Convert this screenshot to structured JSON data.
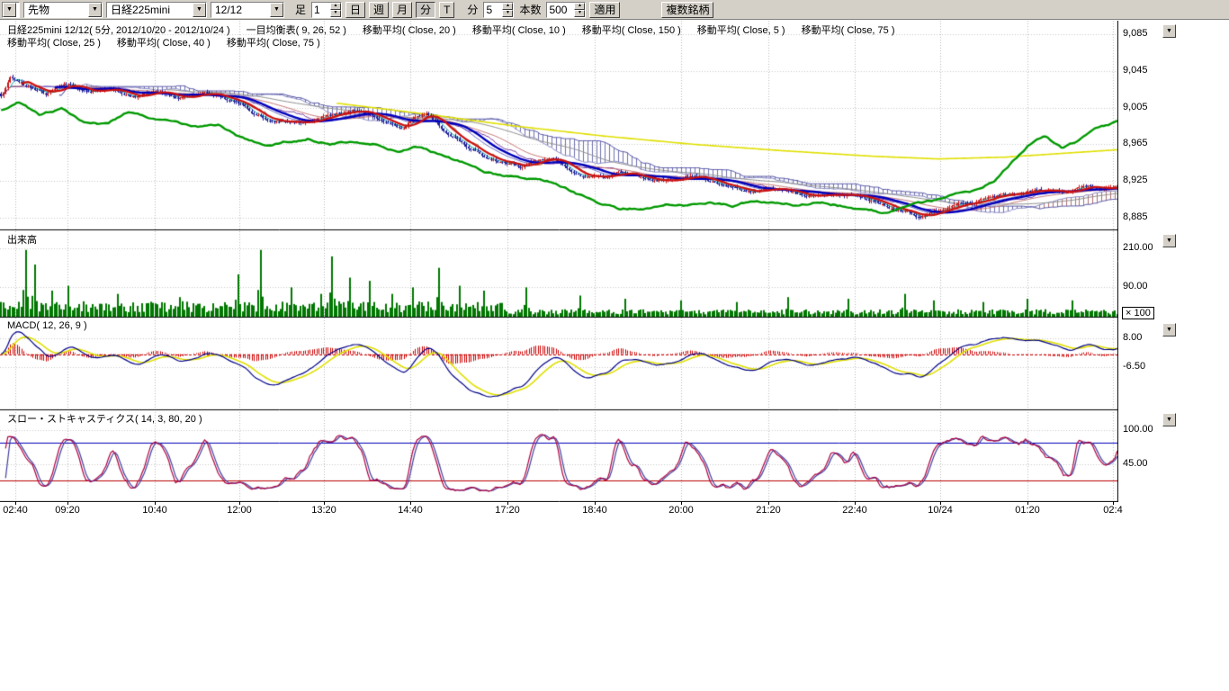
{
  "toolbar": {
    "selects": {
      "category": "先物",
      "symbol": "日経225mini",
      "contract": "12/12"
    },
    "bar_label": "足",
    "bar_multiplier_value": "1",
    "period_buttons": [
      "日",
      "週",
      "月",
      "分"
    ],
    "tick_button_label": "T",
    "minute_unit_label": "分",
    "minute_value": "5",
    "count_label": "本数",
    "count_value": "500",
    "apply_label": "適用",
    "multi_symbol_label": "複数銘柄"
  },
  "chart_header": {
    "line1": [
      "日経225mini 12/12( 5分, 2012/10/20 - 2012/10/24 )",
      "一目均衡表( 9, 26, 52 )",
      "移動平均( Close, 20 )",
      "移動平均( Close, 10 )",
      "移動平均( Close, 150 )",
      "移動平均( Close, 5 )",
      "移動平均( Close, 75 )"
    ],
    "line2": [
      "移動平均( Close, 25 )",
      "移動平均( Close, 40 )",
      "移動平均( Close, 75 )"
    ]
  },
  "panel_labels": {
    "volume": "出来高",
    "macd": "MACD( 12, 26, 9 )",
    "stoch": "スロー・ストキャスティクス( 14, 3, 80, 20 )",
    "volume_multiplier": "× 100"
  },
  "chart_data": {
    "type": "candlestick",
    "symbol": "日経225mini 12/12",
    "interval": "5分",
    "date_range": "2012/10/20 - 2012/10/24",
    "bars": 500,
    "x_axis": {
      "labels": [
        "02:40",
        "09:20",
        "10:40",
        "12:00",
        "13:20",
        "14:40",
        "17:20",
        "18:40",
        "20:00",
        "21:20",
        "22:40",
        "10/24",
        "01:20",
        "02:4"
      ],
      "positions": [
        0.014,
        0.06,
        0.138,
        0.214,
        0.29,
        0.367,
        0.454,
        0.532,
        0.609,
        0.687,
        0.764,
        0.841,
        0.919,
        0.995
      ]
    },
    "main": {
      "ylim": [
        8872,
        9100
      ],
      "ytick_labels": [
        "9,085",
        "9,045",
        "9,005",
        "8,965",
        "8,925",
        "8,885"
      ],
      "ytick_values": [
        9085,
        9045,
        9005,
        8965,
        8925,
        8885
      ],
      "ichimoku_params": [
        9,
        26,
        52
      ],
      "close_anchors": [
        [
          0,
          9018
        ],
        [
          0.008,
          9038
        ],
        [
          0.02,
          9028
        ],
        [
          0.04,
          9020
        ],
        [
          0.06,
          9028
        ],
        [
          0.08,
          9022
        ],
        [
          0.1,
          9025
        ],
        [
          0.12,
          9018
        ],
        [
          0.14,
          9022
        ],
        [
          0.16,
          9015
        ],
        [
          0.18,
          9020
        ],
        [
          0.2,
          9012
        ],
        [
          0.215,
          9008
        ],
        [
          0.225,
          8996
        ],
        [
          0.24,
          8990
        ],
        [
          0.255,
          8992
        ],
        [
          0.27,
          8988
        ],
        [
          0.285,
          8992
        ],
        [
          0.3,
          8998
        ],
        [
          0.315,
          9002
        ],
        [
          0.33,
          8996
        ],
        [
          0.345,
          8986
        ],
        [
          0.36,
          8978
        ],
        [
          0.37,
          8990
        ],
        [
          0.38,
          8996
        ],
        [
          0.39,
          8988
        ],
        [
          0.4,
          8975
        ],
        [
          0.41,
          8968
        ],
        [
          0.42,
          8960
        ],
        [
          0.435,
          8950
        ],
        [
          0.45,
          8944
        ],
        [
          0.465,
          8940
        ],
        [
          0.48,
          8950
        ],
        [
          0.495,
          8948
        ],
        [
          0.51,
          8938
        ],
        [
          0.525,
          8932
        ],
        [
          0.54,
          8930
        ],
        [
          0.555,
          8936
        ],
        [
          0.57,
          8932
        ],
        [
          0.585,
          8928
        ],
        [
          0.6,
          8926
        ],
        [
          0.615,
          8932
        ],
        [
          0.63,
          8928
        ],
        [
          0.645,
          8922
        ],
        [
          0.66,
          8918
        ],
        [
          0.675,
          8914
        ],
        [
          0.69,
          8920
        ],
        [
          0.705,
          8918
        ],
        [
          0.72,
          8914
        ],
        [
          0.735,
          8910
        ],
        [
          0.75,
          8913
        ],
        [
          0.765,
          8910
        ],
        [
          0.78,
          8904
        ],
        [
          0.795,
          8896
        ],
        [
          0.81,
          8890
        ],
        [
          0.822,
          8884
        ],
        [
          0.835,
          8892
        ],
        [
          0.85,
          8898
        ],
        [
          0.865,
          8902
        ],
        [
          0.88,
          8906
        ],
        [
          0.895,
          8910
        ],
        [
          0.91,
          8912
        ],
        [
          0.925,
          8916
        ],
        [
          0.94,
          8914
        ],
        [
          0.955,
          8912
        ],
        [
          0.97,
          8918
        ],
        [
          0.985,
          8916
        ],
        [
          1,
          8920
        ]
      ],
      "green_anchors": [
        [
          0,
          9002
        ],
        [
          0.015,
          9012
        ],
        [
          0.035,
          8996
        ],
        [
          0.055,
          9004
        ],
        [
          0.075,
          8990
        ],
        [
          0.095,
          8986
        ],
        [
          0.115,
          9000
        ],
        [
          0.135,
          8994
        ],
        [
          0.155,
          8988
        ],
        [
          0.175,
          8984
        ],
        [
          0.195,
          8986
        ],
        [
          0.215,
          8972
        ],
        [
          0.235,
          8964
        ],
        [
          0.255,
          8968
        ],
        [
          0.275,
          8972
        ],
        [
          0.295,
          8966
        ],
        [
          0.315,
          8970
        ],
        [
          0.335,
          8966
        ],
        [
          0.355,
          8958
        ],
        [
          0.375,
          8962
        ],
        [
          0.395,
          8952
        ],
        [
          0.415,
          8944
        ],
        [
          0.435,
          8934
        ],
        [
          0.455,
          8930
        ],
        [
          0.475,
          8928
        ],
        [
          0.495,
          8924
        ],
        [
          0.515,
          8912
        ],
        [
          0.535,
          8900
        ],
        [
          0.555,
          8894
        ],
        [
          0.575,
          8896
        ],
        [
          0.595,
          8900
        ],
        [
          0.615,
          8898
        ],
        [
          0.635,
          8902
        ],
        [
          0.655,
          8898
        ],
        [
          0.675,
          8904
        ],
        [
          0.695,
          8900
        ],
        [
          0.715,
          8898
        ],
        [
          0.735,
          8902
        ],
        [
          0.755,
          8898
        ],
        [
          0.775,
          8892
        ],
        [
          0.795,
          8890
        ],
        [
          0.815,
          8896
        ],
        [
          0.835,
          8902
        ],
        [
          0.855,
          8908
        ],
        [
          0.875,
          8914
        ],
        [
          0.89,
          8924
        ],
        [
          0.905,
          8944
        ],
        [
          0.92,
          8962
        ],
        [
          0.935,
          8972
        ],
        [
          0.95,
          8960
        ],
        [
          0.965,
          8968
        ],
        [
          0.98,
          8980
        ],
        [
          1,
          8990
        ]
      ],
      "yellow_anchors": [
        [
          0.3,
          9010
        ],
        [
          0.38,
          8998
        ],
        [
          0.46,
          8985
        ],
        [
          0.54,
          8974
        ],
        [
          0.62,
          8965
        ],
        [
          0.7,
          8958
        ],
        [
          0.78,
          8952
        ],
        [
          0.84,
          8949
        ],
        [
          0.9,
          8951
        ],
        [
          0.95,
          8955
        ],
        [
          1,
          8959
        ]
      ],
      "colors": {
        "up": "#cc1111",
        "down": "#1a1a99",
        "green": "#009900",
        "yellow": "#e0e000",
        "thick_red": "#cc1111",
        "thick_blue": "#0000bb",
        "cloud_bear": "#7070b0",
        "cloud_bull": "#b07070"
      }
    },
    "volume": {
      "ylim": [
        0,
        265
      ],
      "ytick_labels": [
        "210.00",
        "90.00"
      ],
      "ytick_values": [
        210,
        90
      ],
      "color": "#007700",
      "spikes": [
        [
          0.022,
          205
        ],
        [
          0.03,
          160
        ],
        [
          0.046,
          80
        ],
        [
          0.06,
          95
        ],
        [
          0.105,
          70
        ],
        [
          0.16,
          60
        ],
        [
          0.213,
          130
        ],
        [
          0.232,
          205
        ],
        [
          0.26,
          90
        ],
        [
          0.287,
          70
        ],
        [
          0.296,
          185
        ],
        [
          0.312,
          120
        ],
        [
          0.33,
          110
        ],
        [
          0.35,
          70
        ],
        [
          0.368,
          90
        ],
        [
          0.392,
          150
        ],
        [
          0.41,
          95
        ],
        [
          0.432,
          80
        ],
        [
          0.47,
          90
        ],
        [
          0.52,
          65
        ],
        [
          0.56,
          55
        ],
        [
          0.61,
          50
        ],
        [
          0.66,
          45
        ],
        [
          0.705,
          60
        ],
        [
          0.76,
          55
        ],
        [
          0.81,
          70
        ],
        [
          0.835,
          50
        ],
        [
          0.88,
          45
        ],
        [
          0.92,
          55
        ],
        [
          0.96,
          50
        ]
      ]
    },
    "macd": {
      "params": [
        12,
        26,
        9
      ],
      "ylim": [
        -28,
        19
      ],
      "ytick_labels": [
        "8.00",
        "-6.50"
      ],
      "ytick_values": [
        8,
        -6.5
      ],
      "display_gain": 2.4,
      "colors": {
        "line": "#000088",
        "signal": "#e0e000",
        "hist": "#cc0000",
        "zero": "#cc0000"
      }
    },
    "stoch": {
      "params": [
        14,
        3,
        80,
        20
      ],
      "ylim": [
        -13,
        133
      ],
      "ytick_labels": [
        "100.00",
        "45.00"
      ],
      "ytick_values": [
        100,
        45
      ],
      "ref_lines": [
        {
          "value": 80,
          "color": "#0000bb"
        },
        {
          "value": 20,
          "color": "#bb0000"
        }
      ],
      "colors": {
        "k": "#b00040",
        "d": "#4040a0"
      }
    }
  }
}
